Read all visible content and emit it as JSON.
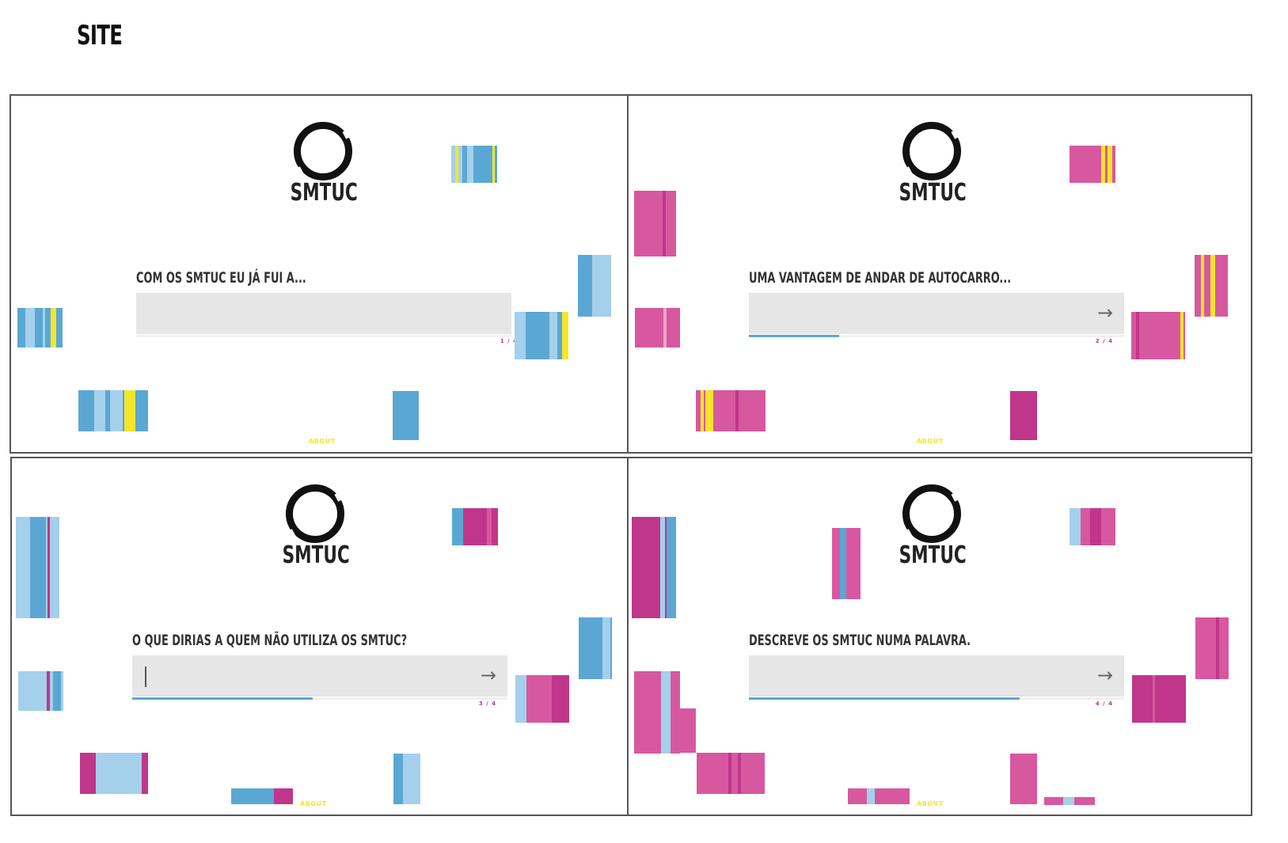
{
  "title": "SITE",
  "colors": {
    "blue": "#5ba7d3",
    "light_blue": "#a4d0ec",
    "yellow": "#f4e52a",
    "magenta": "#c0368a",
    "pink": "#d7589f",
    "input_bg": "#e6e6e6"
  },
  "panels": [
    {
      "logo_text": "SMTUC",
      "question": "COM OS SMTUC EU JÁ FUI A...",
      "input_value": "",
      "progress": 0.0,
      "page": "1 / 4",
      "about": "ABOUT",
      "arrow_icon": "arrow-right-icon",
      "show_arrow": false,
      "show_caret": false
    },
    {
      "logo_text": "SMTUC",
      "question": "UMA VANTAGEM DE ANDAR DE AUTOCARRO...",
      "input_value": "",
      "progress": 0.25,
      "page": "2 / 4",
      "about": "ABOUT",
      "arrow_icon": "arrow-right-icon",
      "show_arrow": true,
      "show_caret": false
    },
    {
      "logo_text": "SMTUC",
      "question": "O QUE DIRIAS A QUEM NÃO UTILIZA OS SMTUC?",
      "input_value": "",
      "progress": 0.5,
      "page": "3 / 4",
      "about": "ABOUT",
      "arrow_icon": "arrow-right-icon",
      "show_arrow": true,
      "show_caret": true
    },
    {
      "logo_text": "SMTUC",
      "question": "DESCREVE OS SMTUC NUMA PALAVRA.",
      "input_value": "",
      "progress": 0.75,
      "page": "4 / 4",
      "about": "ABOUT",
      "arrow_icon": "arrow-right-icon",
      "show_arrow": true,
      "show_caret": false
    }
  ]
}
